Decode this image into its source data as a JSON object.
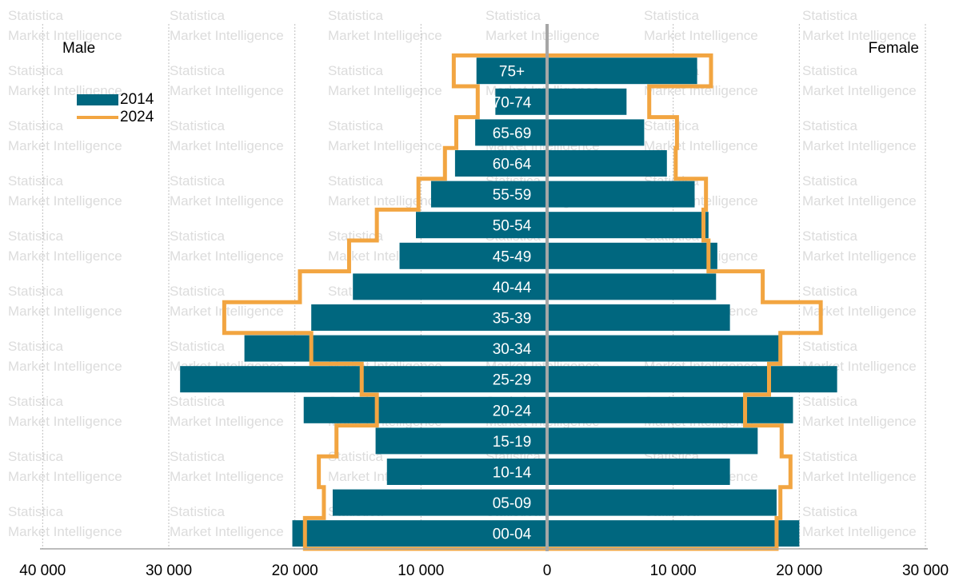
{
  "chart_data": {
    "type": "bar",
    "orientation": "horizontal-pyramid",
    "left_side_label": "Male",
    "right_side_label": "Female",
    "categories": [
      "00-04",
      "05-09",
      "10-14",
      "15-19",
      "20-24",
      "25-29",
      "30-34",
      "35-39",
      "40-44",
      "45-49",
      "50-54",
      "55-59",
      "60-64",
      "65-69",
      "70-74",
      "75+"
    ],
    "series": [
      {
        "name": "2014",
        "style": "bar",
        "male": [
          20200,
          17000,
          12700,
          13600,
          19300,
          29100,
          24000,
          18700,
          15400,
          11700,
          10400,
          9200,
          7300,
          5700,
          4100,
          5600
        ],
        "female": [
          20000,
          18200,
          14500,
          16700,
          19500,
          23000,
          18500,
          14500,
          13400,
          13500,
          12800,
          11700,
          9500,
          7700,
          6300,
          11900
        ]
      },
      {
        "name": "2024",
        "style": "step-outline",
        "male": [
          19200,
          17700,
          18100,
          16700,
          13500,
          14700,
          18700,
          25600,
          19600,
          15700,
          13500,
          10200,
          8100,
          7200,
          5500,
          7400
        ],
        "female": [
          18200,
          18500,
          19300,
          18600,
          15700,
          17600,
          18500,
          21700,
          17100,
          12800,
          12400,
          12600,
          10200,
          10300,
          8100,
          13000
        ]
      }
    ],
    "xlim": [
      -30000,
      30000
    ],
    "x_ticks": [
      {
        "value": -40000,
        "label": "40 000"
      },
      {
        "value": -30000,
        "label": "30 000"
      },
      {
        "value": -20000,
        "label": "20 000"
      },
      {
        "value": -10000,
        "label": "10 000"
      },
      {
        "value": 0,
        "label": "0"
      },
      {
        "value": 10000,
        "label": "10 000"
      },
      {
        "value": 20000,
        "label": "20 000"
      },
      {
        "value": 30000,
        "label": "30 000"
      }
    ],
    "legend": [
      {
        "label": "2014",
        "style": "bar"
      },
      {
        "label": "2024",
        "style": "line"
      }
    ],
    "legend_position": "top-left",
    "grid": true,
    "watermark": [
      "Statistica",
      "Market Intelligence"
    ],
    "colors": {
      "bar_2014": "#00677f",
      "line_2024": "#f2a541",
      "center_axis": "#a6a6a6",
      "grid": "#bfbfbf",
      "watermark": "#dcdcdc"
    }
  }
}
